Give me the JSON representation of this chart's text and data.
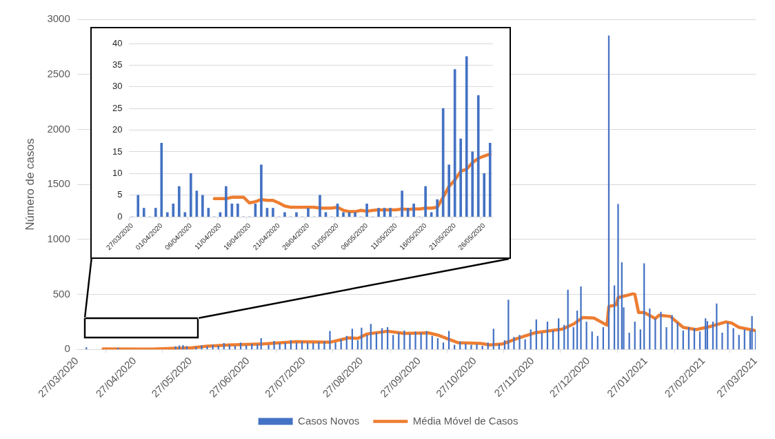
{
  "chart_data": [
    {
      "type": "bar",
      "ylabel": "Número de casos",
      "xlim": [
        "2020-03-27",
        "2021-03-27"
      ],
      "xticks": [
        {
          "value": "2020-03-27",
          "label": "27/03/2020"
        },
        {
          "value": "2020-04-27",
          "label": "27/04/2020"
        },
        {
          "value": "2020-05-27",
          "label": "27/05/2020"
        },
        {
          "value": "2020-06-27",
          "label": "27/06/2020"
        },
        {
          "value": "2020-07-27",
          "label": "27/07/2020"
        },
        {
          "value": "2020-08-27",
          "label": "27/08/2020"
        },
        {
          "value": "2020-09-27",
          "label": "27/09/2020"
        },
        {
          "value": "2020-10-27",
          "label": "27/10/2020"
        },
        {
          "value": "2020-11-27",
          "label": "27/11/2020"
        },
        {
          "value": "2020-12-27",
          "label": "27/12/2020"
        },
        {
          "value": "2021-01-27",
          "label": "27/01/2021"
        },
        {
          "value": "2021-02-27",
          "label": "27/02/2021"
        },
        {
          "value": "2021-03-27",
          "label": "27/03/2021"
        }
      ],
      "ylim": [
        0,
        3000
      ],
      "yticks": [
        0,
        500,
        1000,
        1500,
        2000,
        2500,
        3000
      ],
      "grid": "y",
      "legend": "bottom",
      "marker": "none",
      "series": [
        {
          "name": "Casos Novos",
          "color": "#4472c4",
          "x": [
            "2020-04-01",
            "2020-04-18",
            "2020-05-19",
            "2020-05-21",
            "2020-05-23",
            "2020-05-25",
            "2020-05-30",
            "2020-06-02",
            "2020-06-05",
            "2020-06-08",
            "2020-06-11",
            "2020-06-14",
            "2020-06-17",
            "2020-06-20",
            "2020-06-23",
            "2020-06-26",
            "2020-06-29",
            "2020-07-02",
            "2020-07-04",
            "2020-07-08",
            "2020-07-11",
            "2020-07-14",
            "2020-07-17",
            "2020-07-20",
            "2020-07-23",
            "2020-07-26",
            "2020-07-29",
            "2020-08-01",
            "2020-08-04",
            "2020-08-07",
            "2020-08-10",
            "2020-08-13",
            "2020-08-16",
            "2020-08-19",
            "2020-08-22",
            "2020-08-25",
            "2020-08-27",
            "2020-08-30",
            "2020-09-01",
            "2020-09-04",
            "2020-09-07",
            "2020-09-10",
            "2020-09-13",
            "2020-09-16",
            "2020-09-19",
            "2020-09-22",
            "2020-09-25",
            "2020-09-28",
            "2020-10-01",
            "2020-10-04",
            "2020-10-07",
            "2020-10-10",
            "2020-10-13",
            "2020-10-16",
            "2020-10-19",
            "2020-10-22",
            "2020-10-25",
            "2020-10-28",
            "2020-10-31",
            "2020-11-03",
            "2020-11-06",
            "2020-11-09",
            "2020-11-12",
            "2020-11-14",
            "2020-11-17",
            "2020-11-20",
            "2020-11-23",
            "2020-11-26",
            "2020-11-29",
            "2020-12-02",
            "2020-12-05",
            "2020-12-08",
            "2020-12-11",
            "2020-12-14",
            "2020-12-16",
            "2020-12-19",
            "2020-12-21",
            "2020-12-23",
            "2020-12-26",
            "2020-12-29",
            "2021-01-01",
            "2021-01-04",
            "2021-01-07",
            "2021-01-10",
            "2021-01-12",
            "2021-01-14",
            "2021-01-15",
            "2021-01-18",
            "2021-01-21",
            "2021-01-24",
            "2021-01-26",
            "2021-01-29",
            "2021-02-01",
            "2021-02-04",
            "2021-02-07",
            "2021-02-10",
            "2021-02-13",
            "2021-02-16",
            "2021-02-19",
            "2021-02-22",
            "2021-02-25",
            "2021-02-28",
            "2021-03-01",
            "2021-03-04",
            "2021-03-06",
            "2021-03-09",
            "2021-03-12",
            "2021-03-15",
            "2021-03-18",
            "2021-03-21",
            "2021-03-24",
            "2021-03-25",
            "2021-03-27"
          ],
          "values": [
            17,
            12,
            25,
            34,
            37,
            28,
            20,
            35,
            25,
            40,
            30,
            55,
            40,
            30,
            60,
            35,
            50,
            45,
            100,
            40,
            75,
            55,
            60,
            80,
            60,
            70,
            60,
            55,
            65,
            70,
            165,
            60,
            90,
            120,
            185,
            80,
            195,
            130,
            230,
            150,
            190,
            200,
            130,
            150,
            170,
            140,
            160,
            150,
            165,
            120,
            100,
            60,
            165,
            40,
            70,
            50,
            40,
            45,
            30,
            60,
            185,
            50,
            80,
            450,
            110,
            130,
            90,
            180,
            270,
            150,
            250,
            170,
            280,
            220,
            540,
            200,
            350,
            570,
            250,
            160,
            120,
            200,
            2850,
            580,
            1320,
            790,
            380,
            150,
            250,
            180,
            780,
            370,
            280,
            340,
            200,
            310,
            240,
            170,
            200,
            190,
            160,
            280,
            255,
            250,
            415,
            150,
            240,
            190,
            130,
            180,
            170,
            300,
            170
          ]
        },
        {
          "name": "Média Móvel de Casos",
          "type": "line",
          "color": "#ed7d31",
          "x": [
            "2020-04-10",
            "2020-05-06",
            "2020-05-28",
            "2020-06-05",
            "2020-06-17",
            "2020-07-05",
            "2020-07-23",
            "2020-08-10",
            "2020-08-20",
            "2020-08-25",
            "2020-08-30",
            "2020-09-10",
            "2020-09-19",
            "2020-10-02",
            "2020-10-07",
            "2020-10-18",
            "2020-10-30",
            "2020-11-04",
            "2020-11-11",
            "2020-11-18",
            "2020-11-28",
            "2020-12-13",
            "2020-12-19",
            "2020-12-24",
            "2020-12-30",
            "2021-01-06",
            "2021-01-07",
            "2021-01-11",
            "2021-01-12",
            "2021-01-20",
            "2021-01-21",
            "2021-01-23",
            "2021-01-26",
            "2021-02-01",
            "2021-02-03",
            "2021-02-09",
            "2021-02-16",
            "2021-02-23",
            "2021-03-03",
            "2021-03-11",
            "2021-03-14",
            "2021-03-18",
            "2021-03-27"
          ],
          "values": [
            4,
            2,
            15,
            30,
            40,
            50,
            70,
            65,
            105,
            100,
            140,
            165,
            145,
            150,
            130,
            60,
            55,
            40,
            50,
            95,
            150,
            185,
            230,
            290,
            285,
            220,
            390,
            405,
            470,
            505,
            500,
            335,
            335,
            280,
            310,
            300,
            200,
            180,
            210,
            250,
            240,
            200,
            170
          ]
        }
      ]
    },
    {
      "type": "bar",
      "categories": [
        "27/03/2020",
        null,
        null,
        null,
        null,
        "01/04/2020",
        null,
        null,
        null,
        null,
        "06/04/2020",
        null,
        null,
        null,
        null,
        "11/04/2020",
        null,
        null,
        null,
        null,
        "16/04/2020",
        null,
        null,
        null,
        null,
        "21/04/2020",
        null,
        null,
        null,
        null,
        "26/04/2020",
        null,
        null,
        null,
        null,
        "01/05/2020",
        null,
        null,
        null,
        null,
        "06/05/2020",
        null,
        null,
        null,
        null,
        "11/05/2020",
        null,
        null,
        null,
        null,
        "16/05/2020",
        null,
        null,
        null,
        null,
        "21/05/2020",
        null,
        null,
        null,
        null,
        "26/05/2020",
        null
      ],
      "ylim": [
        0,
        40
      ],
      "yticks": [
        0,
        5,
        10,
        15,
        20,
        25,
        30,
        35,
        40
      ],
      "grid": "y",
      "marker": "none",
      "series": [
        {
          "color": "#4472c4",
          "values": [
            0,
            5,
            2,
            0,
            2,
            17,
            1,
            3,
            7,
            1,
            10,
            6,
            5,
            2,
            0,
            1,
            7,
            3,
            3,
            0,
            0,
            3,
            12,
            2,
            2,
            0,
            1,
            0,
            1,
            0,
            2,
            0,
            5,
            1,
            0,
            3,
            1,
            1,
            1,
            0,
            3,
            0,
            2,
            2,
            2,
            0,
            6,
            2,
            3,
            0,
            7,
            1,
            4,
            25,
            12,
            34,
            18,
            37,
            15,
            28,
            10,
            17
          ]
        },
        {
          "type": "line",
          "color": "#ed7d31",
          "values": [
            null,
            null,
            null,
            null,
            null,
            null,
            null,
            null,
            null,
            null,
            null,
            null,
            null,
            null,
            4.2,
            4.2,
            4.2,
            4.5,
            4.5,
            4.5,
            3.2,
            3.5,
            4,
            3.8,
            3.8,
            3.2,
            2.5,
            2.2,
            2.2,
            2.2,
            2.2,
            2.2,
            2,
            2,
            2,
            2.2,
            1.5,
            1.2,
            1.2,
            1.5,
            1.3,
            1.5,
            1.6,
            1.6,
            1.6,
            1.6,
            1.8,
            1.7,
            1.8,
            1.8,
            2,
            2,
            2.2,
            4.5,
            7,
            8.5,
            10.5,
            11,
            12.5,
            13.5,
            14,
            14.5
          ]
        }
      ]
    }
  ]
}
